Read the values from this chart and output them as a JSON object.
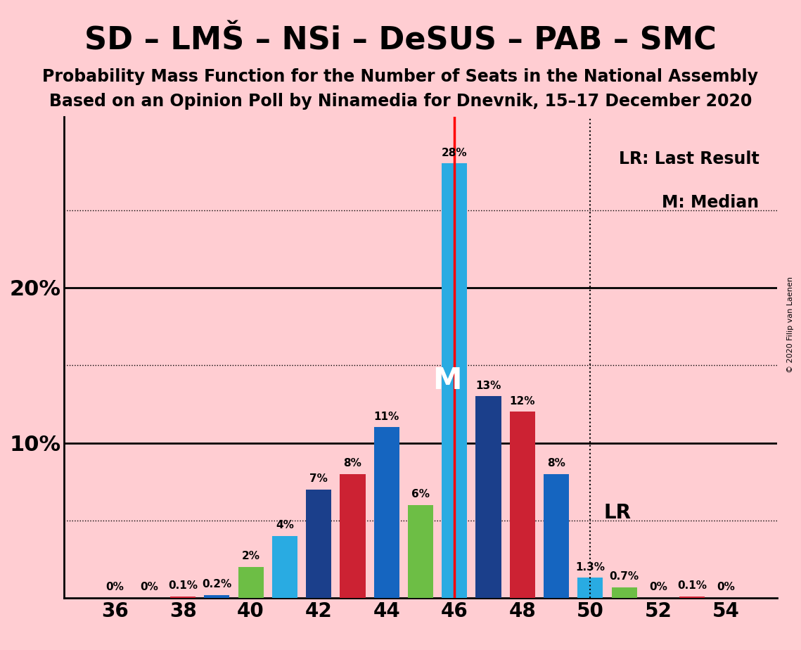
{
  "title1": "SD – LMŠ – NSi – DeSUS – PAB – SMC",
  "title2": "Probability Mass Function for the Number of Seats in the National Assembly",
  "title3": "Based on an Opinion Poll by Ninamedia for Dnevnik, 15–17 December 2020",
  "copyright": "© 2020 Filip van Laenen",
  "background_color": "#FFCDD2",
  "seats": [
    36,
    37,
    38,
    39,
    40,
    41,
    42,
    43,
    44,
    45,
    46,
    47,
    48,
    49,
    50,
    51,
    52,
    53,
    54
  ],
  "values": [
    0.0,
    0.0,
    0.1,
    0.2,
    2.0,
    4.0,
    7.0,
    8.0,
    11.0,
    6.0,
    28.0,
    13.0,
    12.0,
    8.0,
    1.3,
    0.7,
    0.0,
    0.1,
    0.0
  ],
  "labels": [
    "0%",
    "0%",
    "0.1%",
    "0.2%",
    "2%",
    "4%",
    "7%",
    "8%",
    "11%",
    "6%",
    "28%",
    "13%",
    "12%",
    "8%",
    "1.3%",
    "0.7%",
    "0%",
    "0.1%",
    "0%"
  ],
  "colors": [
    "#29ABE2",
    "#1B3F8B",
    "#CC2233",
    "#1565C0",
    "#6DBE45",
    "#29ABE2",
    "#1B3F8B",
    "#CC2233",
    "#1565C0",
    "#6DBE45",
    "#29ABE2",
    "#1B3F8B",
    "#CC2233",
    "#1565C0",
    "#29ABE2",
    "#6DBE45",
    "#1B3F8B",
    "#CC2233",
    "#1565C0"
  ],
  "median_seat": 46,
  "last_result_seat": 50,
  "bar_width": 0.75,
  "xlim": [
    34.5,
    55.5
  ],
  "ylim": [
    0,
    31
  ],
  "dotted_lines": [
    5,
    15,
    25
  ],
  "solid_lines": [
    10,
    20
  ],
  "title1_fontsize": 32,
  "title2_fontsize": 17,
  "title3_fontsize": 17,
  "legend_fontsize": 17,
  "lr_label": "LR",
  "median_label": "M"
}
